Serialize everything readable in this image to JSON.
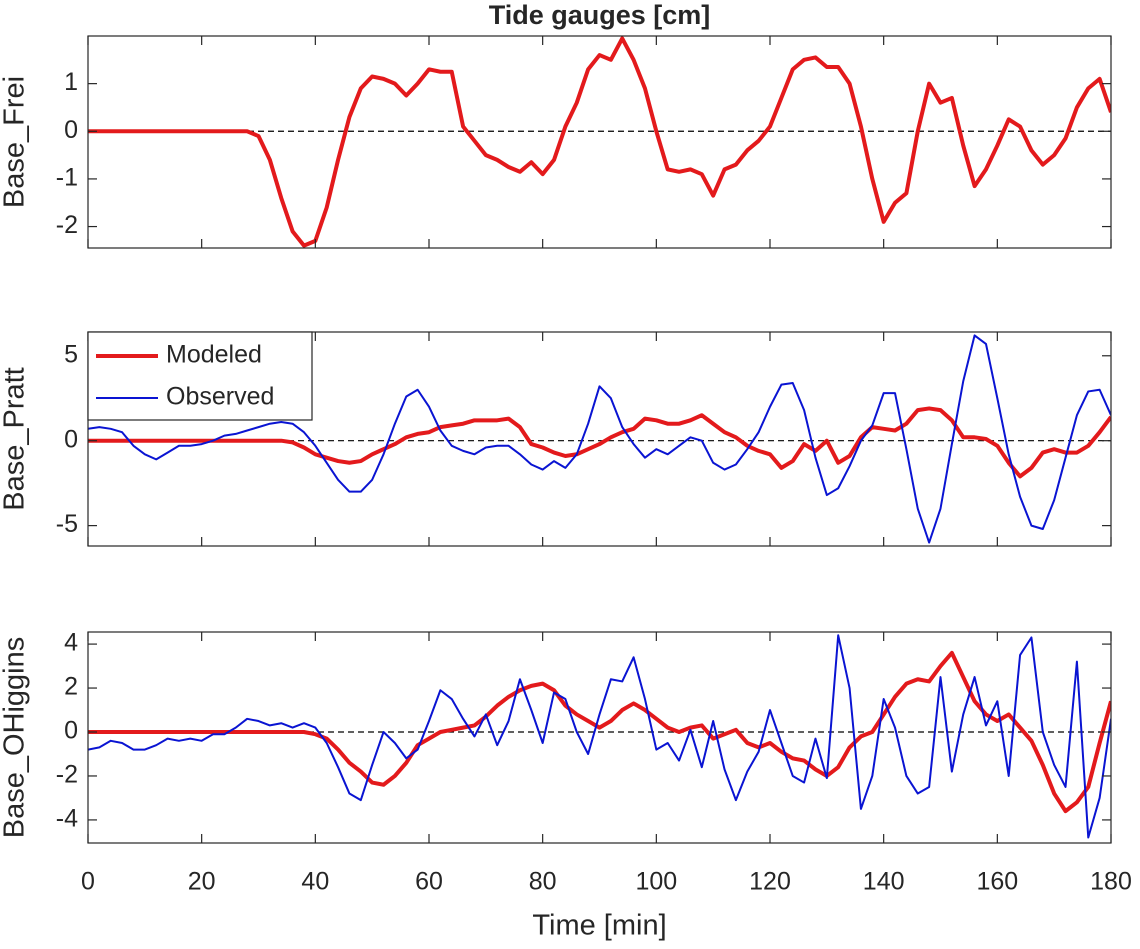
{
  "chart_data": [
    {
      "type": "line",
      "title": "Tide gauges [cm]",
      "ylabel": "Base_Frei",
      "x": [
        0,
        2,
        4,
        6,
        8,
        10,
        12,
        14,
        16,
        18,
        20,
        22,
        24,
        26,
        28,
        30,
        32,
        34,
        36,
        38,
        40,
        42,
        44,
        46,
        48,
        50,
        52,
        54,
        56,
        58,
        60,
        62,
        64,
        66,
        68,
        70,
        72,
        74,
        76,
        78,
        80,
        82,
        84,
        86,
        88,
        90,
        92,
        94,
        96,
        98,
        100,
        102,
        104,
        106,
        108,
        110,
        112,
        114,
        116,
        118,
        120,
        122,
        124,
        126,
        128,
        130,
        132,
        134,
        136,
        138,
        140,
        142,
        144,
        146,
        148,
        150,
        152,
        154,
        156,
        158,
        160,
        162,
        164,
        166,
        168,
        170,
        172,
        174,
        176,
        178,
        180
      ],
      "series": [
        {
          "name": "Modeled",
          "color": "#e31a1c",
          "width": 4,
          "values": [
            0,
            0,
            0,
            0,
            0,
            0,
            0,
            0,
            0,
            0,
            0,
            0,
            0,
            0,
            0,
            -0.1,
            -0.6,
            -1.4,
            -2.1,
            -2.4,
            -2.3,
            -1.6,
            -0.6,
            0.3,
            0.9,
            1.15,
            1.1,
            1.0,
            0.75,
            1.0,
            1.3,
            1.25,
            1.25,
            0.1,
            -0.2,
            -0.5,
            -0.6,
            -0.75,
            -0.85,
            -0.65,
            -0.9,
            -0.6,
            0.1,
            0.6,
            1.3,
            1.6,
            1.5,
            1.95,
            1.5,
            0.9,
            0.0,
            -0.8,
            -0.85,
            -0.8,
            -0.9,
            -1.35,
            -0.8,
            -0.7,
            -0.4,
            -0.2,
            0.1,
            0.7,
            1.3,
            1.5,
            1.55,
            1.35,
            1.35,
            1.0,
            0.1,
            -1.0,
            -1.9,
            -1.5,
            -1.3,
            0.0,
            1.0,
            0.6,
            0.7,
            -0.3,
            -1.15,
            -0.8,
            -0.3,
            0.25,
            0.1,
            -0.4,
            -0.7,
            -0.5,
            -0.15,
            0.5,
            0.9,
            1.1,
            0.4
          ]
        }
      ],
      "xlim": [
        0,
        180
      ],
      "ylim": [
        -2.45,
        2.0
      ],
      "yticks": [
        -2,
        -1,
        0,
        1
      ],
      "hline": 0
    },
    {
      "type": "line",
      "ylabel": "Base_Pratt",
      "legend": "upper left",
      "x": [
        0,
        2,
        4,
        6,
        8,
        10,
        12,
        14,
        16,
        18,
        20,
        22,
        24,
        26,
        28,
        30,
        32,
        34,
        36,
        38,
        40,
        42,
        44,
        46,
        48,
        50,
        52,
        54,
        56,
        58,
        60,
        62,
        64,
        66,
        68,
        70,
        72,
        74,
        76,
        78,
        80,
        82,
        84,
        86,
        88,
        90,
        92,
        94,
        96,
        98,
        100,
        102,
        104,
        106,
        108,
        110,
        112,
        114,
        116,
        118,
        120,
        122,
        124,
        126,
        128,
        130,
        132,
        134,
        136,
        138,
        140,
        142,
        144,
        146,
        148,
        150,
        152,
        154,
        156,
        158,
        160,
        162,
        164,
        166,
        168,
        170,
        172,
        174,
        176,
        178,
        180
      ],
      "series": [
        {
          "name": "Modeled",
          "color": "#e31a1c",
          "width": 4,
          "values": [
            0,
            0,
            0,
            0,
            0,
            0,
            0,
            0,
            0,
            0,
            0,
            0,
            0,
            0,
            0,
            0,
            0,
            0,
            -0.1,
            -0.4,
            -0.8,
            -1.0,
            -1.2,
            -1.3,
            -1.2,
            -0.8,
            -0.5,
            -0.2,
            0.2,
            0.4,
            0.5,
            0.8,
            0.9,
            1.0,
            1.2,
            1.2,
            1.2,
            1.3,
            0.8,
            -0.2,
            -0.4,
            -0.7,
            -0.9,
            -0.8,
            -0.5,
            -0.2,
            0.2,
            0.5,
            0.7,
            1.3,
            1.2,
            1.0,
            1.0,
            1.2,
            1.5,
            1.0,
            0.5,
            0.2,
            -0.3,
            -0.6,
            -0.8,
            -1.6,
            -1.2,
            -0.2,
            -0.6,
            0.0,
            -1.3,
            -0.9,
            0.2,
            0.8,
            0.7,
            0.6,
            1.0,
            1.8,
            1.9,
            1.8,
            1.2,
            0.2,
            0.2,
            0.1,
            -0.3,
            -1.3,
            -2.1,
            -1.6,
            -0.7,
            -0.5,
            -0.7,
            -0.7,
            -0.3,
            0.5,
            1.4
          ]
        },
        {
          "name": "Observed",
          "color": "#0a14d2",
          "width": 2,
          "values": [
            0.7,
            0.8,
            0.7,
            0.5,
            -0.3,
            -0.8,
            -1.1,
            -0.7,
            -0.3,
            -0.3,
            -0.2,
            0.0,
            0.3,
            0.4,
            0.6,
            0.8,
            1.0,
            1.1,
            1.0,
            0.5,
            -0.3,
            -1.3,
            -2.3,
            -3.0,
            -3.0,
            -2.3,
            -0.8,
            1.0,
            2.6,
            3.0,
            2.0,
            0.6,
            -0.3,
            -0.6,
            -0.8,
            -0.4,
            -0.3,
            -0.3,
            -0.8,
            -1.4,
            -1.7,
            -1.2,
            -1.6,
            -0.8,
            1.0,
            3.2,
            2.5,
            0.8,
            -0.2,
            -1.0,
            -0.5,
            -0.8,
            -0.3,
            0.2,
            0.0,
            -1.3,
            -1.7,
            -1.4,
            -0.5,
            0.5,
            2.0,
            3.3,
            3.4,
            1.8,
            -1.0,
            -3.2,
            -2.8,
            -1.5,
            0.0,
            0.9,
            2.8,
            2.8,
            -0.5,
            -4.0,
            -6.0,
            -4.0,
            -0.2,
            3.5,
            6.2,
            5.7,
            2.5,
            -0.8,
            -3.3,
            -5.0,
            -5.2,
            -3.5,
            -1.0,
            1.5,
            2.9,
            3.0,
            1.5
          ]
        }
      ],
      "xlim": [
        0,
        180
      ],
      "ylim": [
        -6.2,
        6.4
      ],
      "yticks": [
        -5,
        0,
        5
      ],
      "hline": 0
    },
    {
      "type": "line",
      "ylabel": "Base_OHiggins",
      "xlabel": "Time [min]",
      "x": [
        0,
        2,
        4,
        6,
        8,
        10,
        12,
        14,
        16,
        18,
        20,
        22,
        24,
        26,
        28,
        30,
        32,
        34,
        36,
        38,
        40,
        42,
        44,
        46,
        48,
        50,
        52,
        54,
        56,
        58,
        60,
        62,
        64,
        66,
        68,
        70,
        72,
        74,
        76,
        78,
        80,
        82,
        84,
        86,
        88,
        90,
        92,
        94,
        96,
        98,
        100,
        102,
        104,
        106,
        108,
        110,
        112,
        114,
        116,
        118,
        120,
        122,
        124,
        126,
        128,
        130,
        132,
        134,
        136,
        138,
        140,
        142,
        144,
        146,
        148,
        150,
        152,
        154,
        156,
        158,
        160,
        162,
        164,
        166,
        168,
        170,
        172,
        174,
        176,
        178,
        180
      ],
      "series": [
        {
          "name": "Modeled",
          "color": "#e31a1c",
          "width": 4,
          "values": [
            0,
            0,
            0,
            0,
            0,
            0,
            0,
            0,
            0,
            0,
            0,
            0,
            0,
            0,
            0,
            0,
            0,
            0,
            0,
            0,
            -0.1,
            -0.3,
            -0.8,
            -1.4,
            -1.8,
            -2.3,
            -2.4,
            -2.0,
            -1.4,
            -0.6,
            -0.3,
            0.0,
            0.1,
            0.2,
            0.3,
            0.7,
            1.2,
            1.6,
            1.9,
            2.1,
            2.2,
            1.9,
            1.2,
            0.8,
            0.5,
            0.2,
            0.5,
            1.0,
            1.3,
            1.0,
            0.6,
            0.2,
            0.0,
            0.2,
            0.3,
            -0.3,
            -0.1,
            0.1,
            -0.5,
            -0.7,
            -0.5,
            -0.9,
            -1.2,
            -1.3,
            -1.7,
            -2.0,
            -1.6,
            -0.7,
            -0.2,
            0.0,
            0.8,
            1.6,
            2.2,
            2.4,
            2.3,
            3.0,
            3.6,
            2.5,
            1.4,
            0.8,
            0.5,
            0.8,
            0.2,
            -0.4,
            -1.5,
            -2.8,
            -3.6,
            -3.2,
            -2.5,
            -0.5,
            1.4
          ]
        },
        {
          "name": "Observed",
          "color": "#0a14d2",
          "width": 2,
          "values": [
            -0.8,
            -0.7,
            -0.4,
            -0.5,
            -0.8,
            -0.8,
            -0.6,
            -0.3,
            -0.4,
            -0.3,
            -0.4,
            -0.1,
            -0.1,
            0.2,
            0.6,
            0.5,
            0.3,
            0.4,
            0.2,
            0.4,
            0.2,
            -0.5,
            -1.6,
            -2.8,
            -3.1,
            -1.5,
            0.0,
            -0.5,
            -1.2,
            -0.8,
            0.5,
            1.9,
            1.5,
            0.6,
            -0.2,
            0.8,
            -0.6,
            0.5,
            2.4,
            1.0,
            -0.5,
            1.8,
            1.5,
            0.0,
            -1.0,
            0.8,
            2.4,
            2.3,
            3.4,
            1.5,
            -0.8,
            -0.5,
            -1.3,
            0.1,
            -1.6,
            0.5,
            -1.7,
            -3.1,
            -1.8,
            -0.9,
            1.0,
            -0.5,
            -2.0,
            -2.3,
            -0.3,
            -2.1,
            4.4,
            2.0,
            -3.5,
            -2.0,
            1.5,
            0.2,
            -2.0,
            -2.8,
            -2.5,
            2.5,
            -1.8,
            0.8,
            2.5,
            0.3,
            1.4,
            -2.0,
            3.5,
            4.3,
            0.0,
            -1.5,
            -2.5,
            3.2,
            -4.8,
            -3.0,
            0.6
          ]
        }
      ],
      "xlim": [
        0,
        180
      ],
      "ylim": [
        -5.05,
        4.55
      ],
      "yticks": [
        -4,
        -2,
        0,
        2,
        4
      ],
      "xticks": [
        0,
        20,
        40,
        60,
        80,
        100,
        120,
        140,
        160,
        180
      ],
      "hline": 0
    }
  ]
}
